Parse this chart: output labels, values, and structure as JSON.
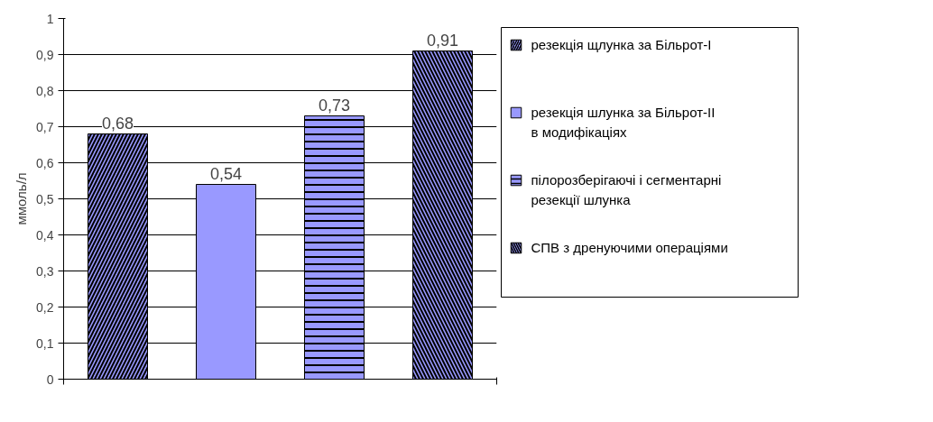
{
  "chart_data": {
    "type": "bar",
    "categories": [
      null
    ],
    "ylabel": "ммоль/л",
    "ylim": [
      0,
      1
    ],
    "yticks": [
      0,
      {
        "value": 0.1,
        "label": "0,1"
      },
      {
        "value": 0.2,
        "label": "0,2"
      },
      {
        "value": 0.3,
        "label": "0,3"
      },
      {
        "value": 0.4,
        "label": "0,4"
      },
      {
        "value": 0.5,
        "label": "0,5"
      },
      {
        "value": 0.6,
        "label": "0,6"
      },
      {
        "value": 0.7,
        "label": "0,7"
      },
      {
        "value": 0.8,
        "label": "0,8"
      },
      {
        "value": 0.9,
        "label": "0,9"
      },
      1
    ],
    "series": [
      {
        "name": "резекція щлунка за Більрот-І",
        "color": "#9999ff",
        "values": [
          0.68
        ],
        "value_labels": [
          "0,68"
        ]
      },
      {
        "name": "резекція шлунка за Більрот-ІІ в модифікаціях",
        "color": "#9999ff",
        "values": [
          0.54
        ],
        "value_labels": [
          "0,54"
        ]
      },
      {
        "name": "пілорозберігаючі і сегментарні резекції шлунка",
        "color": "#9999ff",
        "values": [
          0.73
        ],
        "value_labels": [
          "0,73"
        ]
      },
      {
        "name": "СПВ з дренуючими операціями",
        "color": "#9999ff",
        "values": [
          0.91
        ],
        "value_labels": [
          "0,91"
        ]
      }
    ],
    "grid": "y",
    "legend": "right",
    "tick_labels": "y"
  }
}
